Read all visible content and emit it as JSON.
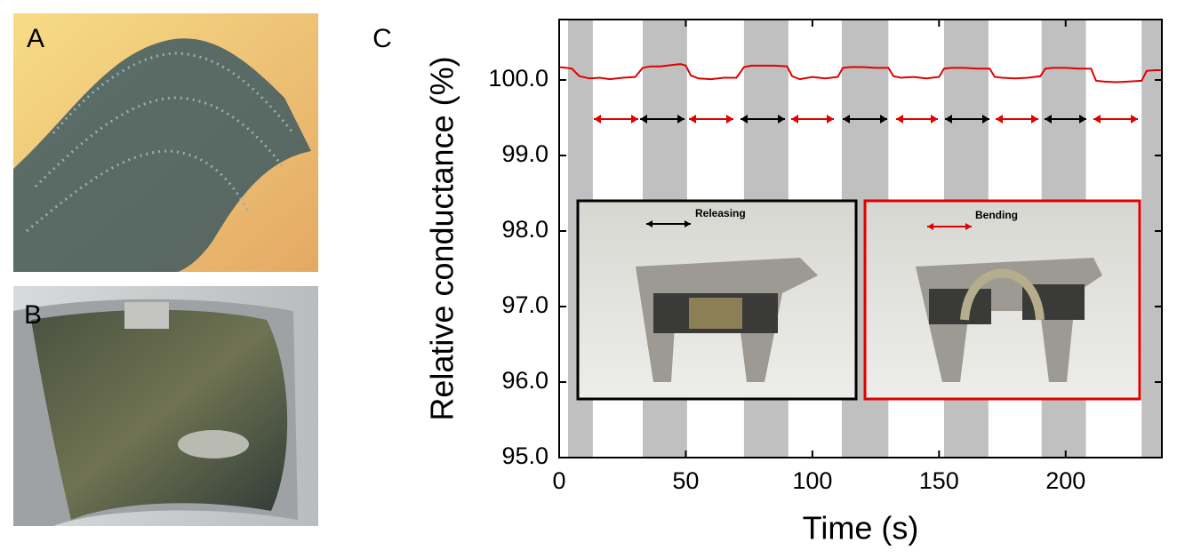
{
  "panel_labels": [
    "A",
    "B",
    "C"
  ],
  "chart_data": {
    "type": "line",
    "xlabel": "Time (s)",
    "ylabel": "Relative conductance (%)",
    "xlim": [
      0,
      238
    ],
    "xticks": [
      0,
      50,
      100,
      150,
      200
    ],
    "ylim": [
      95,
      100.8
    ],
    "yticks": [
      {
        "value": 95,
        "label": "95.0"
      },
      {
        "value": 96,
        "label": "96.0"
      },
      {
        "value": 97,
        "label": "97.0"
      },
      {
        "value": 98,
        "label": "98.0"
      },
      {
        "value": 99,
        "label": "99.0"
      },
      {
        "value": 100,
        "label": "100.0"
      }
    ],
    "shaded_color": "#c0c0c0",
    "shaded_regions": [
      [
        3.5,
        13.3
      ],
      [
        33,
        50.5
      ],
      [
        73,
        90.5
      ],
      [
        111.6,
        130
      ],
      [
        152,
        169.5
      ],
      [
        190.5,
        208
      ],
      [
        230,
        238
      ]
    ],
    "annotations": [
      "Releasing",
      "Bending"
    ],
    "series": [
      {
        "color": "#e00000",
        "x": [
          0,
          3,
          5,
          8,
          12,
          16,
          20,
          25,
          30,
          33,
          36,
          40,
          45,
          48,
          50,
          52,
          55,
          60,
          65,
          70,
          73,
          76,
          80,
          85,
          90,
          92,
          95,
          100,
          105,
          110,
          112,
          115,
          120,
          125,
          130,
          132,
          135,
          140,
          145,
          150,
          152,
          155,
          160,
          165,
          170,
          172,
          175,
          180,
          185,
          190,
          192,
          195,
          200,
          205,
          210,
          212,
          215,
          220,
          225,
          230,
          232,
          235,
          238
        ],
        "values": [
          100.17,
          100.16,
          100.15,
          100.05,
          100.02,
          100.03,
          100.01,
          100.03,
          100.04,
          100.16,
          100.18,
          100.18,
          100.2,
          100.21,
          100.19,
          100.06,
          100.02,
          100.01,
          100.03,
          100.03,
          100.17,
          100.19,
          100.19,
          100.19,
          100.18,
          100.05,
          100.01,
          100.04,
          100.02,
          100.04,
          100.16,
          100.17,
          100.17,
          100.16,
          100.16,
          100.05,
          100.03,
          100.04,
          100.02,
          100.04,
          100.15,
          100.16,
          100.16,
          100.15,
          100.15,
          100.04,
          100.03,
          100.02,
          100.03,
          100.05,
          100.15,
          100.16,
          100.16,
          100.15,
          100.15,
          99.99,
          99.98,
          99.97,
          99.98,
          99.99,
          100.12,
          100.13,
          100.13
        ]
      }
    ]
  }
}
